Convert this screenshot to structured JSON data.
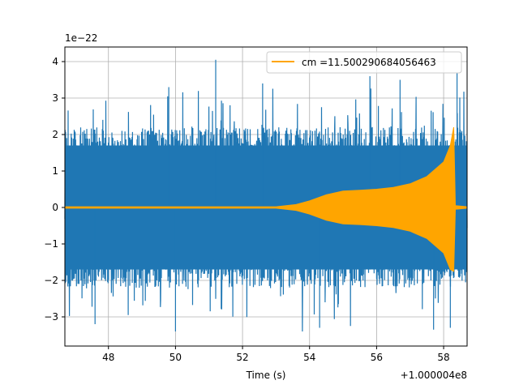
{
  "chart_data": {
    "type": "line",
    "title": "",
    "xlabel": "Time (s)",
    "ylabel": "",
    "y_scale_label": "1e−22",
    "x_offset_label": "+1.000004e8",
    "xlim": [
      46.7,
      58.7
    ],
    "ylim": [
      -3.8,
      4.4
    ],
    "x_ticks": [
      48,
      50,
      52,
      54,
      56,
      58
    ],
    "x_tick_labels": [
      "48",
      "50",
      "52",
      "54",
      "56",
      "58"
    ],
    "y_ticks": [
      -3,
      -2,
      -1,
      0,
      1,
      2,
      3,
      4
    ],
    "y_tick_labels": [
      "−3",
      "−2",
      "−1",
      "0",
      "1",
      "2",
      "3",
      "4"
    ],
    "grid": true,
    "legend_position": "upper-right",
    "series": [
      {
        "name": "",
        "color": "#1f77b4",
        "description": "noise strain data",
        "envelope": {
          "typical_amplitude": 2.0,
          "max": 4.05,
          "min": -3.4
        }
      },
      {
        "name": "cm =11.500290684056463",
        "color": "#ffa500",
        "description": "chirp template",
        "envelope_points": [
          [
            46.7,
            0.02
          ],
          [
            53.0,
            0.02
          ],
          [
            53.6,
            0.08
          ],
          [
            54.0,
            0.18
          ],
          [
            54.5,
            0.35
          ],
          [
            55.0,
            0.45
          ],
          [
            55.5,
            0.47
          ],
          [
            56.0,
            0.5
          ],
          [
            56.5,
            0.55
          ],
          [
            57.0,
            0.65
          ],
          [
            57.5,
            0.85
          ],
          [
            58.0,
            1.25
          ],
          [
            58.2,
            1.7
          ],
          [
            58.3,
            2.2
          ],
          [
            58.35,
            0.05
          ],
          [
            58.7,
            0.02
          ]
        ]
      }
    ]
  },
  "colors": {
    "noise": "#1f77b4",
    "template": "#ffa500",
    "grid": "#b0b0b0",
    "axes": "#000000"
  }
}
